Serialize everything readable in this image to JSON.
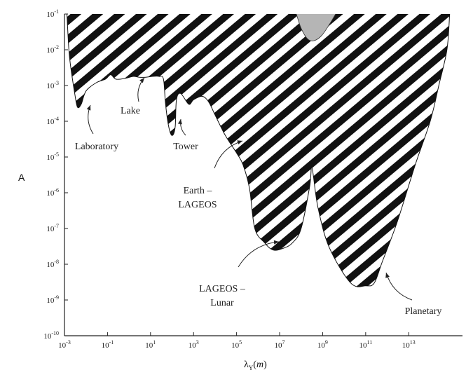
{
  "chart_data": {
    "type": "area",
    "x_scale": "log",
    "y_scale": "log",
    "xlim": [
      0.001,
      10000000000000000
    ],
    "ylim": [
      1e-10,
      0.1
    ],
    "ylabel": "A",
    "xlabel": {
      "main": "λ",
      "sub": "Y",
      "paren_open": "(",
      "unit": "m",
      "paren_close": ")"
    },
    "x_ticks": [
      {
        "base": "10",
        "exp": "-3",
        "value": 0.001
      },
      {
        "base": "10",
        "exp": "-1",
        "value": 0.1
      },
      {
        "base": "10",
        "exp": "1",
        "value": 10
      },
      {
        "base": "10",
        "exp": "3",
        "value": 1000
      },
      {
        "base": "10",
        "exp": "5",
        "value": 100000
      },
      {
        "base": "10",
        "exp": "7",
        "value": 10000000
      },
      {
        "base": "10",
        "exp": "9",
        "value": 1000000000
      },
      {
        "base": "10",
        "exp": "11",
        "value": 100000000000
      },
      {
        "base": "10",
        "exp": "13",
        "value": 10000000000000
      }
    ],
    "y_ticks": [
      {
        "base": "10",
        "exp": "-1",
        "value": 0.1
      },
      {
        "base": "10",
        "exp": "-2",
        "value": 0.01
      },
      {
        "base": "10",
        "exp": "-3",
        "value": 0.001
      },
      {
        "base": "10",
        "exp": "-4",
        "value": 0.0001
      },
      {
        "base": "10",
        "exp": "-5",
        "value": 1e-05
      },
      {
        "base": "10",
        "exp": "-6",
        "value": 1e-06
      },
      {
        "base": "10",
        "exp": "-7",
        "value": 1e-07
      },
      {
        "base": "10",
        "exp": "-8",
        "value": 1e-08
      },
      {
        "base": "10",
        "exp": "-9",
        "value": 1e-09
      },
      {
        "base": "10",
        "exp": "-10",
        "value": 1e-10
      }
    ],
    "excluded_region_boundary": [
      [
        0.0013,
        0.1
      ],
      [
        0.0016,
        0.01
      ],
      [
        0.002,
        0.003
      ],
      [
        0.003,
        0.0006
      ],
      [
        0.004,
        0.00025
      ],
      [
        0.006,
        0.0003
      ],
      [
        0.01,
        0.0007
      ],
      [
        0.03,
        0.0012
      ],
      [
        0.08,
        0.0015
      ],
      [
        0.14,
        0.002
      ],
      [
        0.25,
        0.0015
      ],
      [
        0.7,
        0.0016
      ],
      [
        1.6,
        0.0018
      ],
      [
        3,
        0.0017
      ],
      [
        6,
        0.0017
      ],
      [
        12,
        0.0018
      ],
      [
        25,
        0.0018
      ],
      [
        40,
        0.0015
      ],
      [
        50,
        0.0003
      ],
      [
        70,
        7e-05
      ],
      [
        100,
        4e-05
      ],
      [
        140,
        7e-05
      ],
      [
        160,
        0.0004
      ],
      [
        250,
        0.0006
      ],
      [
        600,
        0.0003
      ],
      [
        1000,
        0.0004
      ],
      [
        2500,
        0.0005
      ],
      [
        5000,
        0.00035
      ],
      [
        10000,
        0.00015
      ],
      [
        30000,
        4e-05
      ],
      [
        100000,
        1.3e-05
      ],
      [
        200000,
        6e-06
      ],
      [
        400000,
        1.3e-06
      ],
      [
        700000,
        1e-07
      ],
      [
        2000000,
        4e-08
      ],
      [
        5000000,
        2.5e-08
      ],
      [
        15000000,
        2.8e-08
      ],
      [
        40000000,
        4e-08
      ],
      [
        100000000,
        1e-07
      ],
      [
        250000000,
        1.5e-06
      ],
      [
        320000000,
        5e-06
      ],
      [
        600000000,
        4e-07
      ],
      [
        2000000000,
        3e-08
      ],
      [
        20000000000,
        3e-09
      ],
      [
        100000000000,
        2.5e-09
      ],
      [
        250000000000,
        3e-09
      ],
      [
        600000000000,
        1.2e-08
      ],
      [
        3000000000000,
        1.6e-07
      ],
      [
        20000000000000,
        6e-06
      ],
      [
        100000000000000,
        0.0001
      ],
      [
        250000000000000,
        0.001
      ],
      [
        600000000000000,
        0.01
      ],
      [
        800000000000000,
        0.1
      ]
    ],
    "gray_region_boundary": [
      [
        60000000,
        0.1
      ],
      [
        100000000,
        0.04
      ],
      [
        200000000,
        0.02
      ],
      [
        400000000,
        0.018
      ],
      [
        900000000,
        0.025
      ],
      [
        2000000000,
        0.05
      ],
      [
        4000000000,
        0.1
      ]
    ],
    "annotations": [
      {
        "label": "Laboratory",
        "at": [
          0.004,
          0.00025
        ]
      },
      {
        "label": "Lake",
        "at": [
          2.5,
          0.0018
        ]
      },
      {
        "label": "Tower",
        "at": [
          70,
          7e-05
        ]
      },
      {
        "label_lines": [
          "Earth –",
          "LAGEOS"
        ],
        "at": [
          500000,
          1.3e-05
        ]
      },
      {
        "label_lines": [
          "LAGEOS –",
          "Lunar"
        ],
        "at": [
          3000000,
          2e-08
        ]
      },
      {
        "label": "Planetary",
        "at": [
          200000000000,
          3e-09
        ]
      }
    ],
    "colors": {
      "stripe": "#111111",
      "gray": "#b5b5b5",
      "axis": "#222222"
    }
  }
}
